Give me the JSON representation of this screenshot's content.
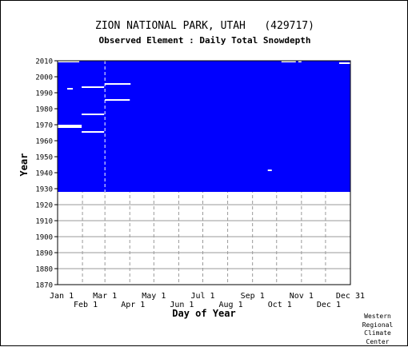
{
  "chart_data": {
    "type": "heatmap",
    "title": "ZION NATIONAL PARK, UTAH   (429717)",
    "subtitle": "Observed Element : Daily Total Snowdepth",
    "xlabel": "Day of Year",
    "ylabel": "Year",
    "x_ticks_upper": [
      "Jan 1",
      "Mar 1",
      "May 1",
      "Jul 1",
      "Sep 1",
      "Nov 1",
      "Dec 31"
    ],
    "x_ticks_lower": [
      "Feb 1",
      "Apr 1",
      "Jun 1",
      "Aug 1",
      "Oct 1",
      "Dec 1"
    ],
    "y_ticks": [
      "2010",
      "2000",
      "1990",
      "1980",
      "1970",
      "1960",
      "1950",
      "1940",
      "1930",
      "1920",
      "1910",
      "1900",
      "1890",
      "1880",
      "1870"
    ],
    "xlim": [
      1,
      366
    ],
    "ylim": [
      1870,
      2010
    ],
    "grid": true,
    "data_color": "#0000ff",
    "missing_color": "#ffffff",
    "record_years": [
      1928,
      2010
    ],
    "missing_periods": [
      {
        "year": 2009,
        "start_day": 1,
        "end_day": 28
      },
      {
        "year": 2009,
        "start_day": 280,
        "end_day": 298
      },
      {
        "year": 2009,
        "start_day": 301,
        "end_day": 305
      },
      {
        "year": 2008,
        "start_day": 352,
        "end_day": 366
      },
      {
        "year": 1995,
        "start_day": 60,
        "end_day": 92
      },
      {
        "year": 1993,
        "start_day": 31,
        "end_day": 59
      },
      {
        "year": 1992,
        "start_day": 13,
        "end_day": 20
      },
      {
        "year": 1985,
        "start_day": 60,
        "end_day": 91
      },
      {
        "year": 1976,
        "start_day": 31,
        "end_day": 59
      },
      {
        "year": 1969,
        "start_day": 1,
        "end_day": 31
      },
      {
        "year": 1968,
        "start_day": 1,
        "end_day": 31
      },
      {
        "year": 1965,
        "start_day": 31,
        "end_day": 59
      },
      {
        "year": 1941,
        "start_day": 263,
        "end_day": 268
      }
    ]
  },
  "credit": [
    "Western",
    "Regional",
    "Climate",
    "Center"
  ]
}
